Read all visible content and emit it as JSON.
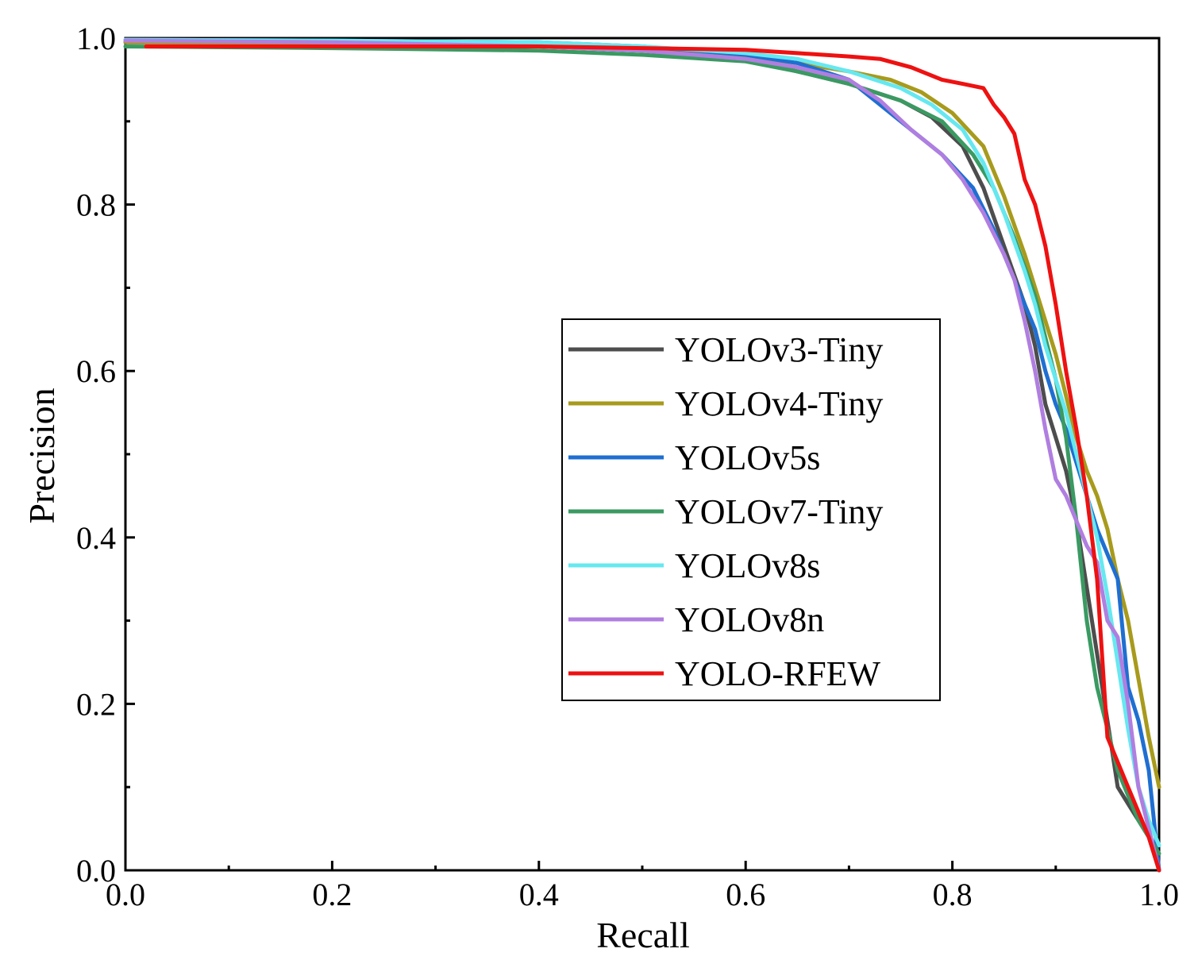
{
  "chart_data": {
    "type": "line",
    "title": "",
    "xlabel": "Recall",
    "ylabel": "Precision",
    "xlim": [
      0.0,
      1.0
    ],
    "ylim": [
      0.0,
      1.0
    ],
    "xticks": [
      "0.0",
      "0.2",
      "0.4",
      "0.6",
      "0.8",
      "1.0"
    ],
    "yticks": [
      "0.0",
      "0.2",
      "0.4",
      "0.6",
      "0.8",
      "1.0"
    ],
    "grid": false,
    "legend_position": "center-right",
    "series": [
      {
        "name": "YOLOv3-Tiny",
        "color": "#4d4d4d",
        "x": [
          0.0,
          0.2,
          0.4,
          0.5,
          0.6,
          0.65,
          0.7,
          0.75,
          0.78,
          0.81,
          0.83,
          0.85,
          0.87,
          0.88,
          0.89,
          0.9,
          0.91,
          0.92,
          0.93,
          0.94,
          0.95,
          0.96,
          0.97,
          0.98,
          0.99,
          1.0
        ],
        "y": [
          0.995,
          0.993,
          0.99,
          0.985,
          0.975,
          0.96,
          0.945,
          0.925,
          0.905,
          0.87,
          0.82,
          0.75,
          0.68,
          0.63,
          0.56,
          0.52,
          0.48,
          0.42,
          0.34,
          0.26,
          0.18,
          0.1,
          0.08,
          0.06,
          0.04,
          0.0
        ]
      },
      {
        "name": "YOLOv4-Tiny",
        "color": "#a89a1c",
        "x": [
          0.0,
          0.2,
          0.4,
          0.5,
          0.6,
          0.65,
          0.7,
          0.74,
          0.77,
          0.8,
          0.83,
          0.85,
          0.87,
          0.88,
          0.89,
          0.9,
          0.91,
          0.92,
          0.93,
          0.94,
          0.95,
          0.96,
          0.97,
          0.98,
          0.99,
          1.0
        ],
        "y": [
          0.995,
          0.993,
          0.99,
          0.985,
          0.978,
          0.97,
          0.96,
          0.95,
          0.935,
          0.91,
          0.87,
          0.81,
          0.74,
          0.7,
          0.66,
          0.62,
          0.57,
          0.52,
          0.48,
          0.45,
          0.41,
          0.35,
          0.3,
          0.23,
          0.16,
          0.1
        ]
      },
      {
        "name": "YOLOv5s",
        "color": "#1f6fd1",
        "x": [
          0.0,
          0.2,
          0.4,
          0.5,
          0.6,
          0.65,
          0.7,
          0.73,
          0.76,
          0.79,
          0.82,
          0.84,
          0.86,
          0.88,
          0.89,
          0.9,
          0.91,
          0.92,
          0.93,
          0.94,
          0.95,
          0.96,
          0.97,
          0.98,
          0.99,
          1.0
        ],
        "y": [
          0.998,
          0.997,
          0.995,
          0.99,
          0.98,
          0.97,
          0.95,
          0.92,
          0.89,
          0.86,
          0.82,
          0.77,
          0.71,
          0.65,
          0.6,
          0.56,
          0.53,
          0.49,
          0.45,
          0.41,
          0.38,
          0.35,
          0.22,
          0.18,
          0.12,
          0.0
        ]
      },
      {
        "name": "YOLOv7-Tiny",
        "color": "#3a9a62",
        "x": [
          0.0,
          0.2,
          0.4,
          0.5,
          0.6,
          0.65,
          0.7,
          0.75,
          0.79,
          0.82,
          0.84,
          0.86,
          0.88,
          0.89,
          0.9,
          0.91,
          0.92,
          0.93,
          0.94,
          0.95,
          0.96,
          0.97,
          0.98,
          0.99,
          1.0
        ],
        "y": [
          0.99,
          0.988,
          0.985,
          0.98,
          0.972,
          0.96,
          0.945,
          0.925,
          0.9,
          0.86,
          0.82,
          0.76,
          0.69,
          0.64,
          0.59,
          0.52,
          0.42,
          0.3,
          0.22,
          0.17,
          0.12,
          0.09,
          0.06,
          0.04,
          0.02
        ]
      },
      {
        "name": "YOLOv8s",
        "color": "#66e8f0",
        "x": [
          0.0,
          0.2,
          0.4,
          0.5,
          0.6,
          0.65,
          0.7,
          0.75,
          0.78,
          0.81,
          0.83,
          0.85,
          0.87,
          0.88,
          0.89,
          0.9,
          0.91,
          0.92,
          0.93,
          0.94,
          0.95,
          0.96,
          0.97,
          0.98,
          0.99,
          1.0
        ],
        "y": [
          0.998,
          0.997,
          0.995,
          0.99,
          0.982,
          0.975,
          0.96,
          0.94,
          0.92,
          0.89,
          0.85,
          0.79,
          0.72,
          0.68,
          0.63,
          0.59,
          0.55,
          0.5,
          0.45,
          0.4,
          0.33,
          0.25,
          0.17,
          0.1,
          0.06,
          0.03
        ]
      },
      {
        "name": "YOLOv8n",
        "color": "#b07ee0",
        "x": [
          0.0,
          0.2,
          0.4,
          0.5,
          0.6,
          0.65,
          0.7,
          0.73,
          0.76,
          0.79,
          0.81,
          0.83,
          0.85,
          0.86,
          0.87,
          0.88,
          0.89,
          0.9,
          0.91,
          0.92,
          0.93,
          0.94,
          0.95,
          0.96,
          0.97,
          0.98,
          0.99,
          1.0
        ],
        "y": [
          0.997,
          0.995,
          0.99,
          0.985,
          0.975,
          0.965,
          0.95,
          0.925,
          0.89,
          0.86,
          0.83,
          0.79,
          0.74,
          0.71,
          0.66,
          0.6,
          0.53,
          0.47,
          0.45,
          0.42,
          0.39,
          0.37,
          0.3,
          0.28,
          0.2,
          0.1,
          0.05,
          0.0
        ]
      },
      {
        "name": "YOLO-RFEW",
        "color": "#ee1111",
        "x": [
          0.02,
          0.2,
          0.4,
          0.5,
          0.6,
          0.65,
          0.7,
          0.73,
          0.76,
          0.79,
          0.81,
          0.83,
          0.84,
          0.85,
          0.86,
          0.87,
          0.88,
          0.89,
          0.9,
          0.91,
          0.92,
          0.93,
          0.94,
          0.95,
          0.96,
          0.97,
          0.98,
          0.99,
          1.0
        ],
        "y": [
          0.99,
          0.99,
          0.99,
          0.988,
          0.986,
          0.982,
          0.978,
          0.975,
          0.965,
          0.95,
          0.945,
          0.94,
          0.92,
          0.905,
          0.885,
          0.83,
          0.8,
          0.75,
          0.68,
          0.6,
          0.53,
          0.45,
          0.35,
          0.16,
          0.13,
          0.1,
          0.07,
          0.04,
          0.0
        ]
      }
    ]
  }
}
